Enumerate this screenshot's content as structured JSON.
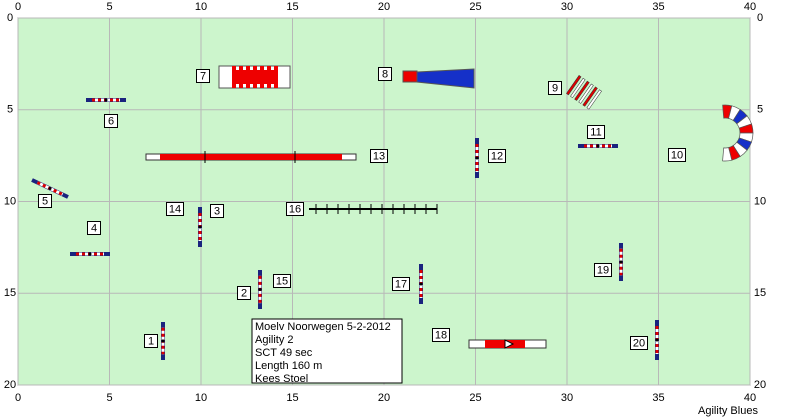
{
  "axes": {
    "xticks": [
      0,
      5,
      10,
      15,
      20,
      25,
      30,
      35,
      40
    ],
    "yticks": [
      0,
      5,
      10,
      15,
      20
    ]
  },
  "obstacle_numbers": [
    "1",
    "2",
    "3",
    "4",
    "5",
    "6",
    "7",
    "8",
    "9",
    "10",
    "11",
    "12",
    "13",
    "14",
    "15",
    "16",
    "17",
    "18",
    "19",
    "20"
  ],
  "info": {
    "lines": [
      "Moelv Noorwegen 5-2-2012",
      "Agility 2",
      "SCT 49 sec",
      "Length 160 m",
      "Kees Stoel"
    ]
  },
  "footer": "Agility Blues"
}
